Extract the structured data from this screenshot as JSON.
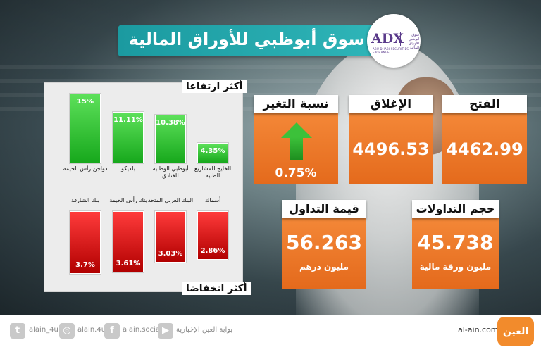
{
  "title": "سوق أبوظبي للأوراق المالية",
  "logo": {
    "abbr": "ADX",
    "name_ar": "سوق أبوظبي للأوراق المالية",
    "name_en": "ABU DHABI SECURITIES EXCHANGE"
  },
  "gainers": {
    "label": "أكثر ارتفاعا",
    "items": [
      {
        "name": "دواجن رأس الخيمة",
        "value": "15%",
        "pct": 15
      },
      {
        "name": "بلديكو",
        "value": "11.11%",
        "pct": 11.11
      },
      {
        "name": "أبوظبي الوطنية للفنادق",
        "value": "10.38%",
        "pct": 10.38
      },
      {
        "name": "الخليج للمشاريع الطبية",
        "value": "4.35%",
        "pct": 4.35
      }
    ]
  },
  "losers": {
    "label": "أكثر انخفاضا",
    "items": [
      {
        "name": "بنك الشارقة",
        "value": "3.7%",
        "pct": 3.7
      },
      {
        "name": "بنك رأس الخيمة",
        "value": "3.61%",
        "pct": 3.61
      },
      {
        "name": "البنك العربي المتحد",
        "value": "3.03%",
        "pct": 3.03
      },
      {
        "name": "أسماك",
        "value": "2.86%",
        "pct": 2.86
      }
    ]
  },
  "cards": {
    "open": {
      "label": "الفتح",
      "value": "4462.99"
    },
    "close": {
      "label": "الإغلاق",
      "value": "4496.53"
    },
    "change": {
      "label": "نسبة التغير",
      "value": "0.75%"
    },
    "volume": {
      "label": "حجم التداولات",
      "value": "45.738",
      "unit": "مليون ورقة مالية"
    },
    "turnover": {
      "label": "قيمة التداول",
      "value": "56.263",
      "unit": "مليون درهم"
    }
  },
  "footer": {
    "twitter": "alain_4u",
    "instagram": "alain.4u",
    "facebook": "alain.social",
    "youtube": "بوابة العين الإخبارية",
    "site": "al-ain.com",
    "brand": "العين"
  },
  "colors": {
    "teal": "#1b9aa0",
    "orange": "#e46a1c",
    "green": "#17a81c",
    "red": "#b10000"
  },
  "icons": [
    "twitter-icon",
    "instagram-icon",
    "facebook-icon",
    "youtube-icon",
    "up-arrow-icon"
  ]
}
